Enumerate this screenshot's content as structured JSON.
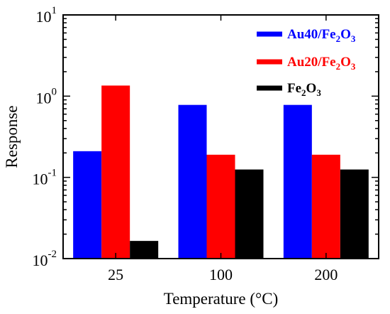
{
  "chart_data": {
    "type": "bar",
    "xlabel": "Temperature (°C)",
    "ylabel": "Response",
    "yscale": "log",
    "ylim": [
      0.01,
      10
    ],
    "y_ticks": [
      {
        "value": 0.01,
        "base": "10",
        "exp": "-2"
      },
      {
        "value": 0.1,
        "base": "10",
        "exp": "-1"
      },
      {
        "value": 1,
        "base": "10",
        "exp": "0"
      },
      {
        "value": 10,
        "base": "10",
        "exp": "1"
      }
    ],
    "categories": [
      "25",
      "100",
      "200"
    ],
    "series": [
      {
        "name": "Au40/Fe2O3",
        "legend": {
          "main": "Au40/Fe",
          "sub1": "2",
          "mid": "O",
          "sub2": "3"
        },
        "color": "#0000ff",
        "values": [
          0.21,
          0.78,
          0.78
        ]
      },
      {
        "name": "Au20/Fe2O3",
        "legend": {
          "main": "Au20/Fe",
          "sub1": "2",
          "mid": "O",
          "sub2": "3"
        },
        "color": "#ff0000",
        "values": [
          1.35,
          0.19,
          0.19
        ]
      },
      {
        "name": "Fe2O3",
        "legend": {
          "main": "Fe",
          "sub1": "2",
          "mid": "O",
          "sub2": "3"
        },
        "color": "#000000",
        "values": [
          0.0165,
          0.125,
          0.125
        ]
      }
    ],
    "legend_position": "top-right",
    "grid": false
  }
}
